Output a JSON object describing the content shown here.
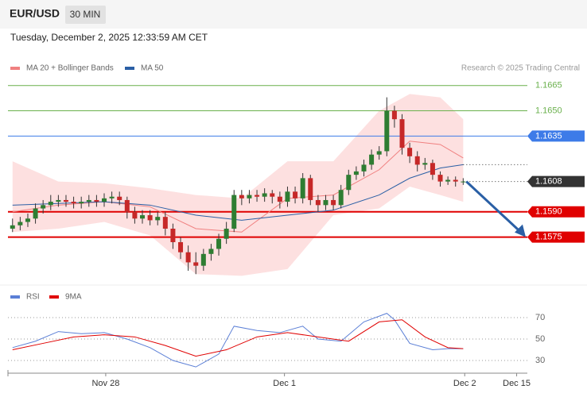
{
  "chart_data": {
    "type": "candlestick",
    "title": "EUR/USD",
    "timeframe": "30 MIN",
    "subtitle": "Tuesday, December 2, 2025 12:33:59 AM CET",
    "source": "Research © 2025 Trading Central",
    "up_color": "#2e7d32",
    "down_color": "#c62828",
    "xlim": [
      -0.6,
      67.4
    ],
    "xticks": [
      {
        "value": 12.2,
        "label": "Nov 28"
      },
      {
        "value": 35.6,
        "label": "Dec 1"
      },
      {
        "value": 59.2,
        "label": "Dec 2"
      },
      {
        "value": 66,
        "label": "Dec 15"
      }
    ],
    "ylim": [
      1.1547,
      1.1671
    ],
    "candles": [
      [
        1.158,
        1.1586,
        1.1578,
        1.1582
      ],
      [
        1.1582,
        1.1587,
        1.1579,
        1.1584
      ],
      [
        1.1584,
        1.1589,
        1.1581,
        1.1586
      ],
      [
        1.1586,
        1.1595,
        1.1583,
        1.1592
      ],
      [
        1.1592,
        1.1597,
        1.1589,
        1.1594
      ],
      [
        1.1594,
        1.16,
        1.1591,
        1.1596
      ],
      [
        1.1596,
        1.16,
        1.1593,
        1.1597
      ],
      [
        1.1597,
        1.16,
        1.1593,
        1.1596
      ],
      [
        1.1596,
        1.1599,
        1.1592,
        1.1595
      ],
      [
        1.1595,
        1.1599,
        1.1592,
        1.1596
      ],
      [
        1.1596,
        1.16,
        1.1593,
        1.1597
      ],
      [
        1.1597,
        1.16,
        1.1593,
        1.1596
      ],
      [
        1.1596,
        1.1601,
        1.1593,
        1.1598
      ],
      [
        1.1598,
        1.1602,
        1.1595,
        1.1599
      ],
      [
        1.1599,
        1.1602,
        1.1594,
        1.1597
      ],
      [
        1.1597,
        1.1599,
        1.1586,
        1.159
      ],
      [
        1.159,
        1.1593,
        1.1583,
        1.1586
      ],
      [
        1.1586,
        1.1591,
        1.1583,
        1.1588
      ],
      [
        1.1588,
        1.1591,
        1.1582,
        1.1585
      ],
      [
        1.1585,
        1.159,
        1.1582,
        1.1587
      ],
      [
        1.1587,
        1.159,
        1.1576,
        1.158
      ],
      [
        1.158,
        1.1583,
        1.1568,
        1.1572
      ],
      [
        1.1572,
        1.1575,
        1.1562,
        1.1566
      ],
      [
        1.1566,
        1.157,
        1.1555,
        1.156
      ],
      [
        1.156,
        1.1566,
        1.1553,
        1.1558
      ],
      [
        1.1558,
        1.1568,
        1.1555,
        1.1565
      ],
      [
        1.1565,
        1.1571,
        1.1561,
        1.1568
      ],
      [
        1.1568,
        1.1577,
        1.1564,
        1.1574
      ],
      [
        1.1574,
        1.1584,
        1.1571,
        1.158
      ],
      [
        1.158,
        1.1603,
        1.1578,
        1.16
      ],
      [
        1.16,
        1.1603,
        1.1594,
        1.1598
      ],
      [
        1.1598,
        1.1603,
        1.1595,
        1.16
      ],
      [
        1.16,
        1.1603,
        1.1596,
        1.1599
      ],
      [
        1.1599,
        1.1604,
        1.1596,
        1.1601
      ],
      [
        1.1601,
        1.1603,
        1.1595,
        1.1599
      ],
      [
        1.1599,
        1.1602,
        1.1592,
        1.1596
      ],
      [
        1.1596,
        1.1605,
        1.1593,
        1.1602
      ],
      [
        1.1602,
        1.1605,
        1.1595,
        1.1598
      ],
      [
        1.1598,
        1.1613,
        1.1595,
        1.161
      ],
      [
        1.161,
        1.1612,
        1.1594,
        1.1597
      ],
      [
        1.1597,
        1.16,
        1.159,
        1.1594
      ],
      [
        1.1594,
        1.16,
        1.1591,
        1.1597
      ],
      [
        1.1597,
        1.16,
        1.1591,
        1.1594
      ],
      [
        1.1594,
        1.1606,
        1.1592,
        1.1603
      ],
      [
        1.1603,
        1.1615,
        1.16,
        1.1612
      ],
      [
        1.1612,
        1.1617,
        1.1609,
        1.1614
      ],
      [
        1.1614,
        1.1621,
        1.1611,
        1.1618
      ],
      [
        1.1618,
        1.1627,
        1.1615,
        1.1624
      ],
      [
        1.1624,
        1.1629,
        1.1621,
        1.1626
      ],
      [
        1.1626,
        1.1658,
        1.1623,
        1.165
      ],
      [
        1.165,
        1.1653,
        1.164,
        1.1645
      ],
      [
        1.1645,
        1.1648,
        1.1624,
        1.1628
      ],
      [
        1.1628,
        1.1631,
        1.1619,
        1.1623
      ],
      [
        1.1623,
        1.1626,
        1.1614,
        1.1618
      ],
      [
        1.1618,
        1.1622,
        1.1615,
        1.1619
      ],
      [
        1.1619,
        1.1621,
        1.1609,
        1.1612
      ],
      [
        1.1612,
        1.1614,
        1.1605,
        1.1608
      ],
      [
        1.1608,
        1.1611,
        1.1606,
        1.1609
      ],
      [
        1.1609,
        1.1611,
        1.1605,
        1.1608
      ],
      [
        1.1608,
        1.161,
        1.1606,
        1.1608
      ]
    ],
    "band": {
      "color": "#fde0e0",
      "x": [
        0,
        6,
        12,
        18,
        24,
        30,
        36,
        42,
        48,
        52,
        56,
        59
      ],
      "upper": [
        1.162,
        1.1608,
        1.1607,
        1.1604,
        1.16,
        1.1598,
        1.162,
        1.162,
        1.165,
        1.166,
        1.1658,
        1.1645
      ],
      "lower": [
        1.1578,
        1.158,
        1.1584,
        1.1576,
        1.1553,
        1.1552,
        1.1556,
        1.1588,
        1.1592,
        1.1605,
        1.16,
        1.1596
      ]
    },
    "series": [
      {
        "name": "MA 20 + Bollinger Bands",
        "color": "#f08080",
        "x": [
          0,
          6,
          12,
          18,
          24,
          30,
          36,
          42,
          48,
          52,
          56,
          59
        ],
        "values": [
          1.159,
          1.1594,
          1.1596,
          1.1593,
          1.158,
          1.1578,
          1.1598,
          1.16,
          1.1615,
          1.1632,
          1.163,
          1.1622
        ]
      },
      {
        "name": "MA 50",
        "color": "#2a5fa5",
        "extend": true,
        "x": [
          0,
          6,
          12,
          18,
          24,
          30,
          36,
          42,
          48,
          52,
          56,
          59
        ],
        "values": [
          1.1594,
          1.1595,
          1.1596,
          1.1594,
          1.1588,
          1.1585,
          1.1588,
          1.1591,
          1.16,
          1.161,
          1.1616,
          1.1618
        ]
      }
    ],
    "levels": [
      {
        "value": 1.1665,
        "label": "1.1665",
        "color": "#6ab04c",
        "label_style": "text"
      },
      {
        "value": 1.165,
        "label": "1.1650",
        "color": "#6ab04c",
        "label_style": "text"
      },
      {
        "value": 1.1635,
        "label": "1.1635",
        "color": "#3d7be8",
        "label_style": "box"
      },
      {
        "value": 1.1608,
        "label": "1.1608",
        "color": "#333333",
        "label_style": "box",
        "dotted": true
      },
      {
        "value": 1.159,
        "label": "1.1590",
        "color": "#e00000",
        "label_style": "box"
      },
      {
        "value": 1.1575,
        "label": "1.1575",
        "color": "#e00000",
        "label_style": "box"
      }
    ],
    "rsi": {
      "ylim": [
        24.1,
        78.9
      ],
      "yticks": [
        30,
        50,
        70
      ],
      "series": [
        {
          "name": "RSI",
          "color": "#5b7fd6",
          "x": [
            0,
            3,
            6,
            9,
            12,
            15,
            18,
            21,
            24,
            27,
            29,
            32,
            35,
            38,
            40,
            43,
            46,
            49,
            50,
            52,
            55,
            57,
            59
          ],
          "values": [
            42,
            48,
            57,
            55,
            56,
            50,
            42,
            30,
            24,
            36,
            62,
            58,
            56,
            62,
            50,
            48,
            66,
            74,
            68,
            46,
            40,
            41,
            41
          ]
        },
        {
          "name": "9MA",
          "color": "#e00000",
          "x": [
            0,
            4,
            8,
            12,
            16,
            20,
            24,
            28,
            32,
            36,
            40,
            44,
            48,
            51,
            54,
            57,
            59
          ],
          "values": [
            40,
            46,
            52,
            54,
            52,
            44,
            34,
            40,
            52,
            56,
            52,
            48,
            66,
            68,
            52,
            42,
            41
          ]
        }
      ]
    }
  }
}
